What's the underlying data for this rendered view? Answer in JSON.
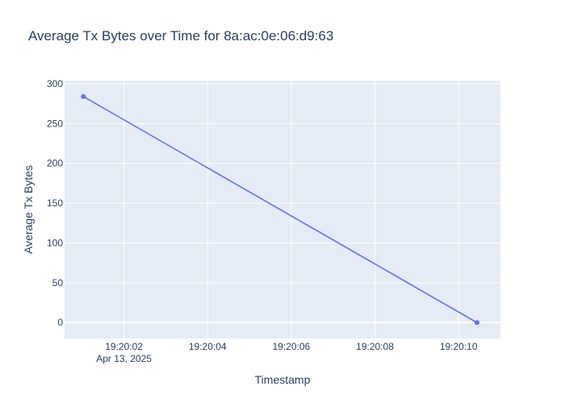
{
  "chart_data": {
    "type": "line",
    "title": "Average Tx Bytes over Time for 8a:ac:0e:06:d9:63",
    "xlabel": "Timestamp",
    "ylabel": "Average Tx Bytes",
    "x_date_label": "Apr 13, 2025",
    "x_tick_labels": [
      "19:20:02",
      "19:20:04",
      "19:20:06",
      "19:20:08",
      "19:20:10"
    ],
    "x_tick_seconds": [
      2,
      4,
      6,
      8,
      10
    ],
    "xlim_seconds": [
      0.58,
      11.0
    ],
    "y_ticks": [
      0,
      50,
      100,
      150,
      200,
      250,
      300
    ],
    "ylim": [
      -20,
      304
    ],
    "grid": true,
    "series": [
      {
        "x": [
          "19:20:01.03",
          "19:20:10.44"
        ],
        "x_seconds": [
          1.03,
          10.44
        ],
        "values": [
          284,
          0
        ],
        "color": "#636efa",
        "mode": "lines+markers"
      }
    ]
  },
  "colors": {
    "plot_bg": "#e5ecf6",
    "grid": "#ffffff",
    "text": "#2a3f5f",
    "series": "#636efa"
  }
}
